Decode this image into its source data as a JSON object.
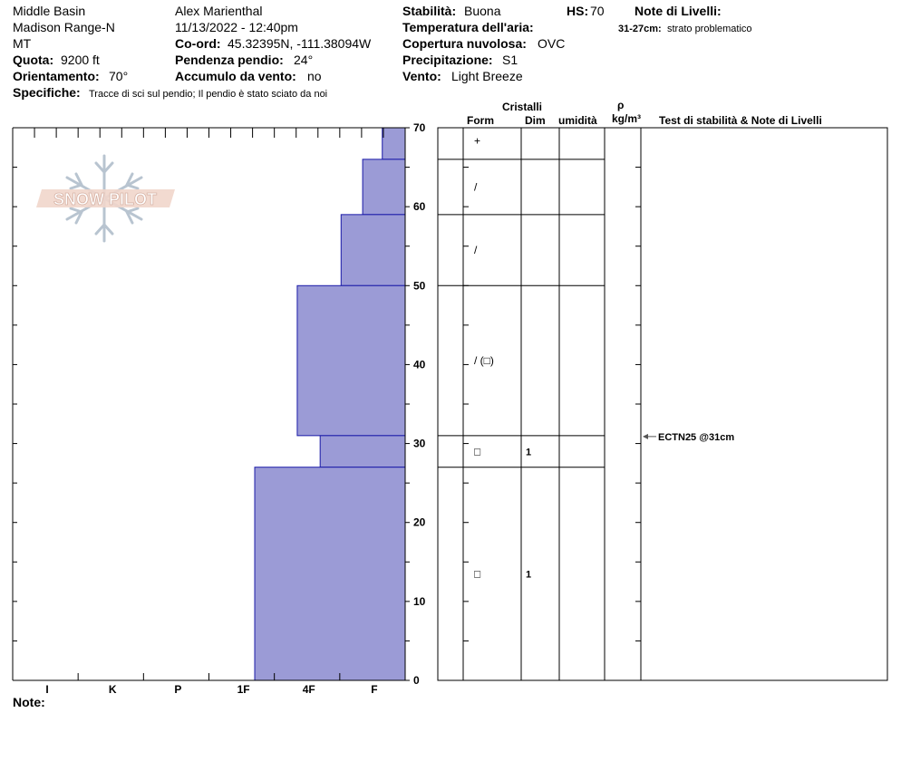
{
  "header": {
    "location": "Middle Basin",
    "range": "Madison Range-N",
    "state": "MT",
    "quota_label": "Quota:",
    "quota_value": "9200 ft",
    "orient_label": "Orientamento:",
    "orient_value": "70°",
    "spec_label": "Specifiche:",
    "spec_value": "Tracce di sci sul pendio;  Il pendio è stato sciato da noi",
    "observer": "Alex Marienthal",
    "datetime": "11/13/2022 - 12:40pm",
    "coord_label": "Co-ord:",
    "coord_value": "45.32395N, -111.38094W",
    "slope_label": "Pendenza pendio:",
    "slope_value": "24°",
    "wind_load_label": "Accumulo da vento:",
    "wind_load_value": "no",
    "stab_label": "Stabilità:",
    "stab_value": "Buona",
    "hs_label": "HS:",
    "hs_value": "70",
    "air_temp_label": "Temperatura dell'aria:",
    "cloud_label": "Copertura nuvolosa:",
    "cloud_value": "OVC",
    "precip_label": "Precipitazione:",
    "precip_value": "S1",
    "wind_label": "Vento:",
    "wind_value": "Light Breeze",
    "layer_notes_label": "Note di Livelli:",
    "layer_note_range": "31-27cm:",
    "layer_note_text": "strato problematico"
  },
  "logo": {
    "text": "SNOW PILOT"
  },
  "columns": {
    "crystals": "Cristalli",
    "form": "Form",
    "dim": "Dim",
    "moisture": "umidità",
    "rho": "ρ",
    "density_unit": "kg/m³",
    "tests": "Test di stabilità & Note di Livelli"
  },
  "footer": {
    "notes_label": "Note:"
  },
  "colors": {
    "bar_fill": "#9b9bd6",
    "bar_stroke": "#1a1aa8",
    "test_arrow": "#555555"
  },
  "chart_data": {
    "type": "bar",
    "orientation": "horizontal",
    "y_axis": {
      "range": [
        0,
        70
      ],
      "ticks": [
        0,
        10,
        20,
        30,
        40,
        50,
        60,
        70
      ],
      "unit": "cm"
    },
    "x_axis": {
      "categories": [
        "I",
        "K",
        "P",
        "1F",
        "4F",
        "F"
      ],
      "label_positions": [
        0.5,
        1.5,
        2.5,
        3.5,
        4.5,
        5.5
      ]
    },
    "layers": [
      {
        "top": 70,
        "bottom": 66,
        "hardness": 0.35,
        "form": "+",
        "dim": ""
      },
      {
        "top": 66,
        "bottom": 59,
        "hardness": 0.65,
        "form": "/",
        "dim": ""
      },
      {
        "top": 59,
        "bottom": 50,
        "hardness": 0.98,
        "form": "/",
        "dim": ""
      },
      {
        "top": 50,
        "bottom": 31,
        "hardness": 1.65,
        "form": "/ (□)",
        "dim": ""
      },
      {
        "top": 31,
        "bottom": 27,
        "hardness": 1.3,
        "form": "□",
        "dim": "1"
      },
      {
        "top": 27,
        "bottom": 0,
        "hardness": 2.3,
        "form": "□",
        "dim": "1"
      }
    ],
    "tests": [
      {
        "depth": 31,
        "label": "ECTN25 @31cm"
      }
    ]
  }
}
